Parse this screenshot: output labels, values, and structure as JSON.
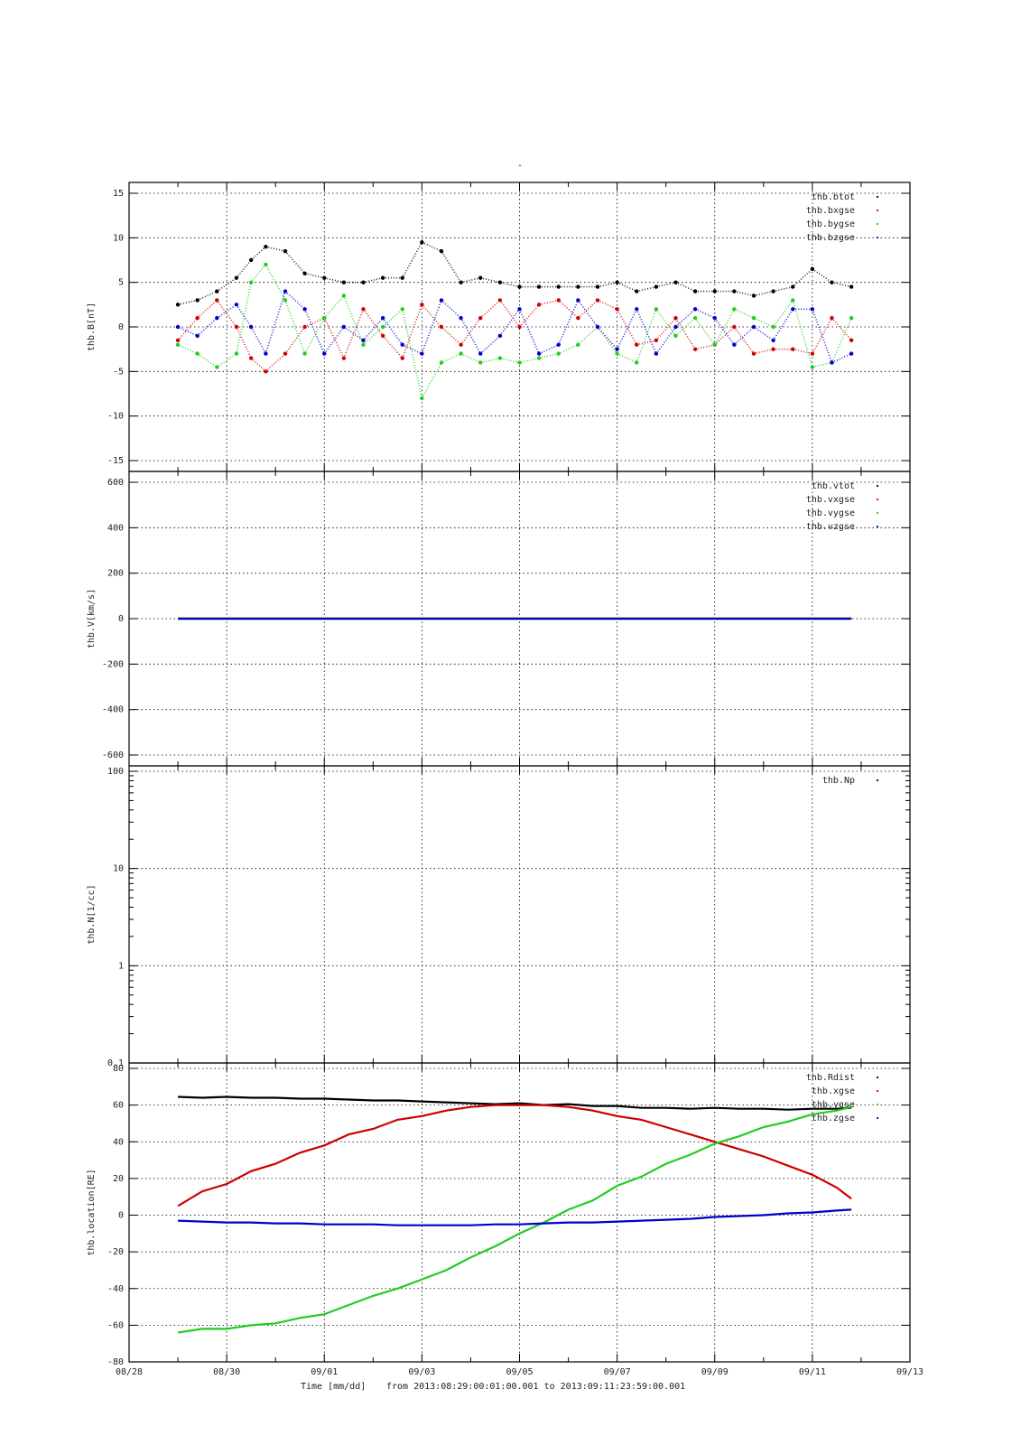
{
  "figure": {
    "title": "-",
    "xlabel": "Time [mm/dd]",
    "time_range_text": "from 2013:08:29:00:01:00.001  to  2013:09:11:23:59:00.001",
    "x_ticks": [
      "08/28",
      "08/30",
      "09/01",
      "09/03",
      "09/05",
      "09/07",
      "09/09",
      "09/11",
      "09/13"
    ]
  },
  "colors": {
    "black": "#000000",
    "red": "#cc0000",
    "green": "#22cc22",
    "blue": "#0000cc"
  },
  "chart_data": [
    {
      "type": "scatter",
      "ylabel": "thb.B[nT]",
      "xlim": [
        0,
        16
      ],
      "ylim": [
        -15,
        15
      ],
      "y_ticks": [
        "15",
        "10",
        "5",
        "0",
        "-5",
        "-10",
        "-15"
      ],
      "legend_position": "top-right",
      "series": [
        {
          "name": "thb.btot",
          "color": "#000000",
          "x": [
            1.0,
            1.4,
            1.8,
            2.2,
            2.5,
            2.8,
            3.2,
            3.6,
            4.0,
            4.4,
            4.8,
            5.2,
            5.6,
            6.0,
            6.4,
            6.8,
            7.2,
            7.6,
            8.0,
            8.4,
            8.8,
            9.2,
            9.6,
            10.0,
            10.4,
            10.8,
            11.2,
            11.6,
            12.0,
            12.4,
            12.8,
            13.2,
            13.6,
            14.0,
            14.4,
            14.8
          ],
          "values": [
            2.5,
            3.0,
            4.0,
            5.5,
            7.5,
            9.0,
            8.5,
            6.0,
            5.5,
            5.0,
            5.0,
            5.5,
            5.5,
            9.5,
            8.5,
            5.0,
            5.5,
            5.0,
            4.5,
            4.5,
            4.5,
            4.5,
            4.5,
            5.0,
            4.0,
            4.5,
            5.0,
            4.0,
            4.0,
            4.0,
            3.5,
            4.0,
            4.5,
            6.5,
            5.0,
            4.5
          ]
        },
        {
          "name": "thb.bxgse",
          "color": "#cc0000",
          "x": [
            1.0,
            1.4,
            1.8,
            2.2,
            2.5,
            2.8,
            3.2,
            3.6,
            4.0,
            4.4,
            4.8,
            5.2,
            5.6,
            6.0,
            6.4,
            6.8,
            7.2,
            7.6,
            8.0,
            8.4,
            8.8,
            9.2,
            9.6,
            10.0,
            10.4,
            10.8,
            11.2,
            11.6,
            12.0,
            12.4,
            12.8,
            13.2,
            13.6,
            14.0,
            14.4,
            14.8
          ],
          "values": [
            -1.5,
            1.0,
            3.0,
            0.0,
            -3.5,
            -5.0,
            -3.0,
            0.0,
            1.0,
            -3.5,
            2.0,
            -1.0,
            -3.5,
            2.5,
            0.0,
            -2.0,
            1.0,
            3.0,
            0.0,
            2.5,
            3.0,
            1.0,
            3.0,
            2.0,
            -2.0,
            -1.5,
            1.0,
            -2.5,
            -2.0,
            0.0,
            -3.0,
            -2.5,
            -2.5,
            -3.0,
            1.0,
            -1.5
          ]
        },
        {
          "name": "thb.bygse",
          "color": "#22cc22",
          "x": [
            1.0,
            1.4,
            1.8,
            2.2,
            2.5,
            2.8,
            3.2,
            3.6,
            4.0,
            4.4,
            4.8,
            5.2,
            5.6,
            6.0,
            6.4,
            6.8,
            7.2,
            7.6,
            8.0,
            8.4,
            8.8,
            9.2,
            9.6,
            10.0,
            10.4,
            10.8,
            11.2,
            11.6,
            12.0,
            12.4,
            12.8,
            13.2,
            13.6,
            14.0,
            14.4,
            14.8
          ],
          "values": [
            -2.0,
            -3.0,
            -4.5,
            -3.0,
            5.0,
            7.0,
            3.0,
            -3.0,
            1.0,
            3.5,
            -2.0,
            0.0,
            2.0,
            -8.0,
            -4.0,
            -3.0,
            -4.0,
            -3.5,
            -4.0,
            -3.5,
            -3.0,
            -2.0,
            0.0,
            -3.0,
            -4.0,
            2.0,
            -1.0,
            1.0,
            -2.0,
            2.0,
            1.0,
            0.0,
            3.0,
            -4.5,
            -4.0,
            1.0
          ]
        },
        {
          "name": "thb.bzgse",
          "color": "#0000cc",
          "x": [
            1.0,
            1.4,
            1.8,
            2.2,
            2.5,
            2.8,
            3.2,
            3.6,
            4.0,
            4.4,
            4.8,
            5.2,
            5.6,
            6.0,
            6.4,
            6.8,
            7.2,
            7.6,
            8.0,
            8.4,
            8.8,
            9.2,
            9.6,
            10.0,
            10.4,
            10.8,
            11.2,
            11.6,
            12.0,
            12.4,
            12.8,
            13.2,
            13.6,
            14.0,
            14.4,
            14.8
          ],
          "values": [
            0.0,
            -1.0,
            1.0,
            2.5,
            0.0,
            -3.0,
            4.0,
            2.0,
            -3.0,
            0.0,
            -1.5,
            1.0,
            -2.0,
            -3.0,
            3.0,
            1.0,
            -3.0,
            -1.0,
            2.0,
            -3.0,
            -2.0,
            3.0,
            0.0,
            -2.5,
            2.0,
            -3.0,
            0.0,
            2.0,
            1.0,
            -2.0,
            0.0,
            -1.5,
            2.0,
            2.0,
            -4.0,
            -3.0
          ]
        }
      ]
    },
    {
      "type": "line",
      "ylabel": "thb.V[km/s]",
      "xlim": [
        0,
        16
      ],
      "ylim": [
        -600,
        600
      ],
      "y_ticks": [
        "600",
        "400",
        "200",
        "0",
        "-200",
        "-400",
        "-600"
      ],
      "legend_position": "top-right",
      "series": [
        {
          "name": "thb.vtot",
          "color": "#000000",
          "x": [
            1.0,
            14.8
          ],
          "values": [
            0,
            0
          ]
        },
        {
          "name": "thb.vxgse",
          "color": "#cc0000",
          "x": [
            1.0,
            14.8
          ],
          "values": [
            0,
            0
          ]
        },
        {
          "name": "thb.vygse",
          "color": "#22cc22",
          "x": [
            1.0,
            14.8
          ],
          "values": [
            0,
            0
          ]
        },
        {
          "name": "thb.vzgse",
          "color": "#0000cc",
          "x": [
            1.0,
            14.8
          ],
          "values": [
            0,
            0
          ]
        }
      ]
    },
    {
      "type": "line",
      "ylabel": "thb.N[1/cc]",
      "xlim": [
        0,
        16
      ],
      "ylim": [
        0.1,
        100
      ],
      "y_scale": "log",
      "y_ticks": [
        "100",
        "10",
        "1",
        "0.1"
      ],
      "legend_position": "top-right",
      "series": [
        {
          "name": "thb.Np",
          "color": "#000000",
          "x": [],
          "values": []
        }
      ]
    },
    {
      "type": "line",
      "ylabel": "thb.location[RE]",
      "xlim": [
        0,
        16
      ],
      "ylim": [
        -80,
        80
      ],
      "y_ticks": [
        "80",
        "60",
        "40",
        "20",
        "0",
        "-20",
        "-40",
        "-60",
        "-80"
      ],
      "legend_position": "top-right",
      "series": [
        {
          "name": "thb.Rdist",
          "color": "#000000",
          "x": [
            1.0,
            1.5,
            2.0,
            2.5,
            3.0,
            3.5,
            4.0,
            4.5,
            5.0,
            5.5,
            6.0,
            6.5,
            7.0,
            7.5,
            8.0,
            8.5,
            9.0,
            9.5,
            10.0,
            10.5,
            11.0,
            11.5,
            12.0,
            12.5,
            13.0,
            13.5,
            14.0,
            14.5,
            14.8
          ],
          "values": [
            64.5,
            64.0,
            64.5,
            64.0,
            64.0,
            63.5,
            63.5,
            63.0,
            62.5,
            62.5,
            62.0,
            61.5,
            61.0,
            60.5,
            61.0,
            60.0,
            60.5,
            59.5,
            59.5,
            58.5,
            58.5,
            58.0,
            58.5,
            58.0,
            58.0,
            57.5,
            58.0,
            58.0,
            58.5
          ]
        },
        {
          "name": "thb.xgse",
          "color": "#cc0000",
          "x": [
            1.0,
            1.5,
            2.0,
            2.5,
            3.0,
            3.5,
            4.0,
            4.5,
            5.0,
            5.5,
            6.0,
            6.5,
            7.0,
            7.5,
            8.0,
            8.5,
            9.0,
            9.5,
            10.0,
            10.5,
            11.0,
            11.5,
            12.0,
            12.5,
            13.0,
            13.5,
            14.0,
            14.5,
            14.8
          ],
          "values": [
            5,
            13,
            17,
            24,
            28,
            34,
            38,
            44,
            47,
            52,
            54,
            57,
            59,
            60,
            60,
            60,
            59,
            57,
            54,
            52,
            48,
            44,
            40,
            36,
            32,
            27,
            22,
            15,
            9
          ]
        },
        {
          "name": "thb.ygse",
          "color": "#22cc22",
          "x": [
            1.0,
            1.5,
            2.0,
            2.5,
            3.0,
            3.5,
            4.0,
            4.5,
            5.0,
            5.5,
            6.0,
            6.5,
            7.0,
            7.5,
            8.0,
            8.5,
            9.0,
            9.5,
            10.0,
            10.5,
            11.0,
            11.5,
            12.0,
            12.5,
            13.0,
            13.5,
            14.0,
            14.5,
            14.8
          ],
          "values": [
            -64,
            -62,
            -62,
            -60,
            -59,
            -56,
            -54,
            -49,
            -44,
            -40,
            -35,
            -30,
            -23,
            -17,
            -10,
            -4,
            3,
            8,
            16,
            21,
            28,
            33,
            39,
            43,
            48,
            51,
            55,
            57,
            59
          ]
        },
        {
          "name": "thb.zgse",
          "color": "#0000cc",
          "x": [
            1.0,
            1.5,
            2.0,
            2.5,
            3.0,
            3.5,
            4.0,
            4.5,
            5.0,
            5.5,
            6.0,
            6.5,
            7.0,
            7.5,
            8.0,
            8.5,
            9.0,
            9.5,
            10.0,
            10.5,
            11.0,
            11.5,
            12.0,
            12.5,
            13.0,
            13.5,
            14.0,
            14.5,
            14.8
          ],
          "values": [
            -3,
            -3.5,
            -4,
            -4,
            -4.5,
            -4.5,
            -5,
            -5,
            -5,
            -5.5,
            -5.5,
            -5.5,
            -5.5,
            -5,
            -5,
            -4.5,
            -4,
            -4,
            -3.5,
            -3,
            -2.5,
            -2,
            -1,
            -0.5,
            0,
            1,
            1.5,
            2.5,
            3
          ]
        }
      ]
    }
  ]
}
